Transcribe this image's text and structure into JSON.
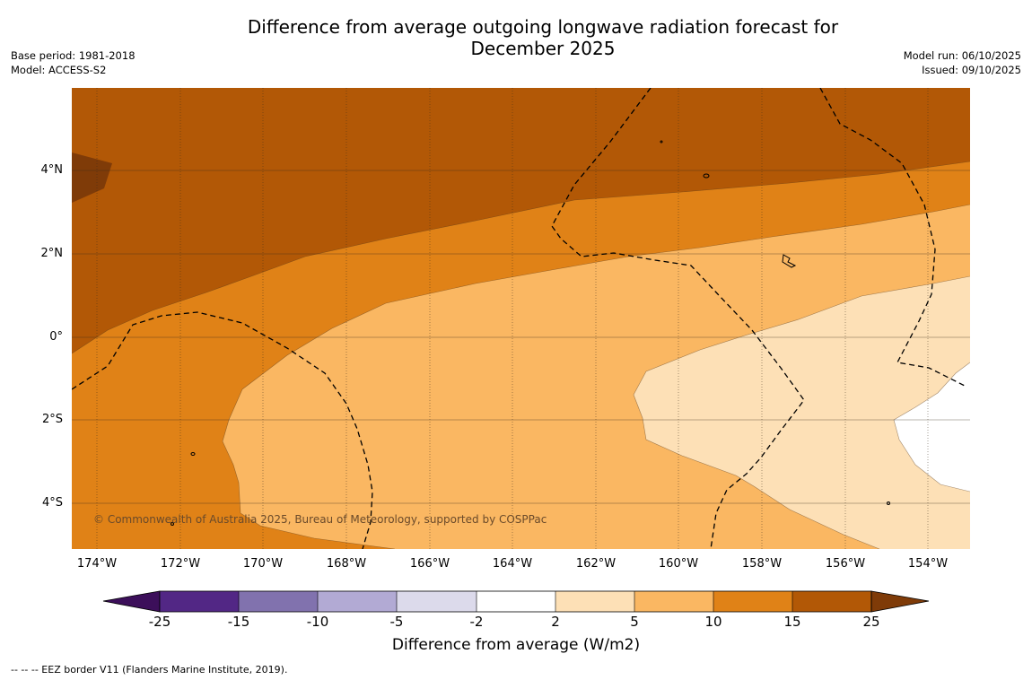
{
  "title": "Difference from average outgoing longwave radiation forecast for December 2025",
  "meta_left": {
    "base_period": "Base period: 1981-2018",
    "model": "Model: ACCESS-S2"
  },
  "meta_right": {
    "model_run": "Model run: 06/10/2025",
    "issued": "Issued: 09/10/2025"
  },
  "latitude_labels": [
    "4°N",
    "2°N",
    "0°",
    "2°S",
    "4°S"
  ],
  "longitude_labels": [
    "174°W",
    "172°W",
    "170°W",
    "168°W",
    "166°W",
    "164°W",
    "162°W",
    "160°W",
    "158°W",
    "156°W",
    "154°W"
  ],
  "copyright": "© Commonwealth of Australia 2025, Bureau of Meteorology, supported by COSPPac",
  "colorbar": {
    "ticks": [
      "-25",
      "-15",
      "-10",
      "-5",
      "-2",
      "2",
      "5",
      "10",
      "15",
      "25"
    ],
    "colors": [
      "#3c0f5a",
      "#522785",
      "#8172ae",
      "#b2aad4",
      "#dcdaeb",
      "#ffffff",
      "#fde0b6",
      "#fab762",
      "#e08217",
      "#b25806",
      "#7f3b08"
    ],
    "label": "Difference from average (W/m2)"
  },
  "footnote": "--  --  -- EEZ border V11 (Flanders Marine Institute, 2019).",
  "map_data": {
    "lat_range": [
      "5.9°N",
      "5.2°S"
    ],
    "lon_range": [
      "174.6°W",
      "152.9°W"
    ],
    "fill_colors": {
      "band_15_25": "#b25806",
      "band_10_15": "#e08217",
      "band_5_10": "#fab762",
      "band_2_5": "#fde0b6",
      "band_minus2_2": "#ffffff",
      "band_over_25": "#7f3b08"
    }
  }
}
